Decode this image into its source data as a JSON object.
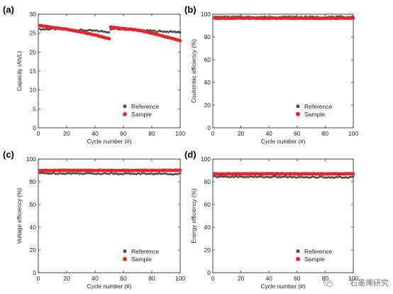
{
  "watermark": {
    "text": "石墨烯研究"
  },
  "legend": {
    "reference": "Reference",
    "sample": "Sample"
  },
  "colors": {
    "reference": "#4a4a4a",
    "sample": "#e8262a"
  },
  "chart_data": [
    {
      "type": "scatter",
      "panel_label": "(a)",
      "xlabel": "Cycle number (#)",
      "ylabel": "Capacity (Ah/L)",
      "xlim": [
        0,
        100
      ],
      "ylim": [
        0,
        30
      ],
      "xticks": [
        0,
        20,
        40,
        60,
        80,
        100
      ],
      "yticks": [
        0,
        5,
        10,
        15,
        20,
        25,
        30
      ],
      "legend_position": "bottom-right",
      "series": [
        {
          "name": "Reference",
          "segments": [
            {
              "x": [
                1,
                10,
                20,
                30,
                40,
                50
              ],
              "y": [
                26.0,
                26.1,
                26.0,
                25.8,
                25.6,
                25.3
              ]
            },
            {
              "x": [
                51,
                60,
                70,
                80,
                90,
                100
              ],
              "y": [
                26.1,
                26.0,
                25.8,
                25.6,
                25.4,
                25.3
              ]
            }
          ]
        },
        {
          "name": "Sample",
          "segments": [
            {
              "x": [
                1,
                10,
                20,
                30,
                40,
                50
              ],
              "y": [
                27.0,
                26.5,
                26.0,
                25.3,
                24.5,
                23.5
              ]
            },
            {
              "x": [
                51,
                60,
                70,
                80,
                90,
                100
              ],
              "y": [
                26.6,
                26.2,
                25.8,
                25.0,
                24.0,
                23.0
              ]
            }
          ]
        }
      ]
    },
    {
      "type": "scatter",
      "panel_label": "(b)",
      "xlabel": "Cycle number (#)",
      "ylabel": "Coulombic efficiency (%)",
      "xlim": [
        0,
        100
      ],
      "ylim": [
        0,
        100
      ],
      "xticks": [
        0,
        20,
        40,
        60,
        80,
        100
      ],
      "yticks": [
        0,
        20,
        40,
        60,
        80,
        100
      ],
      "legend_position": "bottom-right",
      "series": [
        {
          "name": "Reference",
          "segments": [
            {
              "x": [
                1,
                100
              ],
              "y": [
                97.5,
                97.5
              ]
            }
          ]
        },
        {
          "name": "Sample",
          "segments": [
            {
              "x": [
                1,
                100
              ],
              "y": [
                96.5,
                96.5
              ]
            }
          ]
        }
      ]
    },
    {
      "type": "scatter",
      "panel_label": "(c)",
      "xlabel": "Cycle number (#)",
      "ylabel": "Voltage efficiency (%)",
      "xlim": [
        0,
        100
      ],
      "ylim": [
        0,
        100
      ],
      "xticks": [
        0,
        20,
        40,
        60,
        80,
        100
      ],
      "yticks": [
        0,
        20,
        40,
        60,
        80,
        100
      ],
      "legend_position": "bottom-right",
      "series": [
        {
          "name": "Reference",
          "segments": [
            {
              "x": [
                1,
                100
              ],
              "y": [
                87.5,
                87.0
              ]
            }
          ]
        },
        {
          "name": "Sample",
          "segments": [
            {
              "x": [
                1,
                100
              ],
              "y": [
                90.0,
                90.0
              ]
            }
          ]
        }
      ]
    },
    {
      "type": "scatter",
      "panel_label": "(d)",
      "xlabel": "Cycle number (#)",
      "ylabel": "Energy efficiency (%)",
      "xlim": [
        0,
        100
      ],
      "ylim": [
        0,
        100
      ],
      "xticks": [
        0,
        20,
        40,
        60,
        80,
        100
      ],
      "yticks": [
        0,
        20,
        40,
        60,
        80,
        100
      ],
      "legend_position": "bottom-right",
      "series": [
        {
          "name": "Reference",
          "segments": [
            {
              "x": [
                1,
                100
              ],
              "y": [
                84.5,
                84.0
              ]
            }
          ]
        },
        {
          "name": "Sample",
          "segments": [
            {
              "x": [
                1,
                100
              ],
              "y": [
                87.0,
                87.0
              ]
            }
          ]
        }
      ]
    }
  ]
}
